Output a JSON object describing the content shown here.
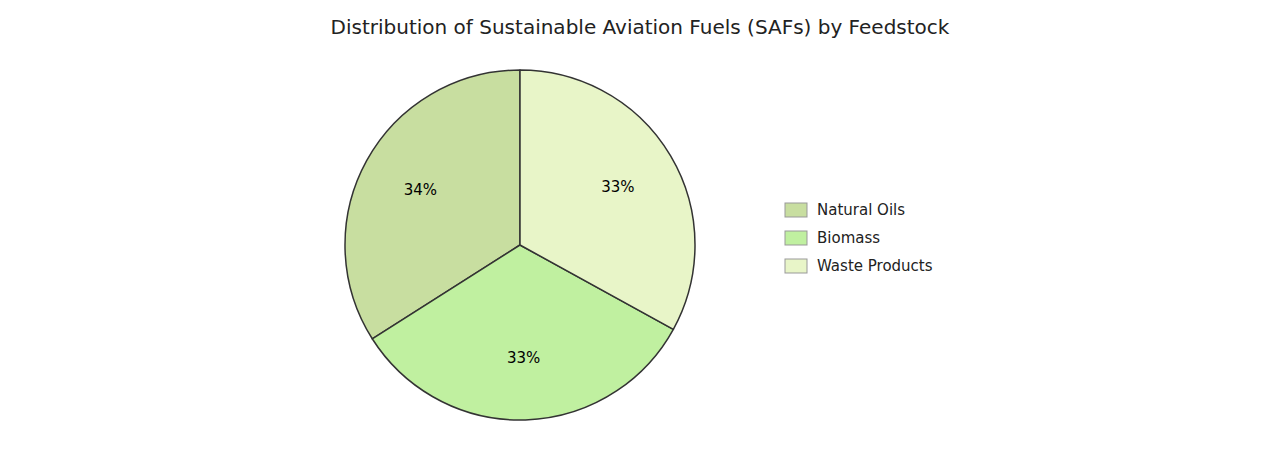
{
  "chart_data": {
    "type": "pie",
    "title": "Distribution of Sustainable Aviation Fuels (SAFs) by Feedstock",
    "categories": [
      "Natural Oils",
      "Biomass",
      "Waste Products"
    ],
    "values": [
      34,
      33,
      33
    ],
    "value_labels": [
      "34%",
      "33%",
      "33%"
    ],
    "colors": [
      "#c8dea0",
      "#c0f0a0",
      "#e8f5c8"
    ],
    "data_labels": true,
    "legend": "right"
  }
}
